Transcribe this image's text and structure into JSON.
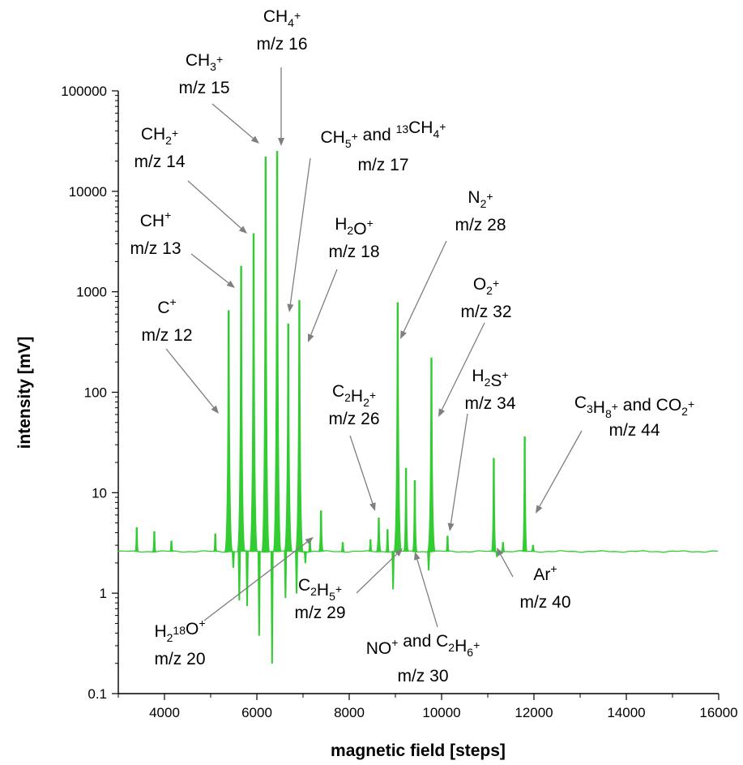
{
  "chart_data": {
    "type": "line",
    "title": "",
    "xlabel": "magnetic field [steps]",
    "ylabel": "intensity [mV]",
    "xlim": [
      3000,
      16000
    ],
    "ylim": [
      0.1,
      100000
    ],
    "y_scale": "log",
    "grid": false,
    "legend": "none",
    "series_color": "#33cc33",
    "baseline": 2.6,
    "x_ticks": [
      4000,
      6000,
      8000,
      10000,
      12000,
      14000,
      16000
    ],
    "x_tick_labels": [
      "4000",
      "6000",
      "8000",
      "10000",
      "12000",
      "14000",
      "16000"
    ],
    "y_ticks": [
      0.1,
      1,
      10,
      100,
      1000,
      10000,
      100000
    ],
    "y_tick_labels": [
      "0.1",
      "1",
      "10",
      "100",
      "1000",
      "10000",
      "100000"
    ],
    "peaks": [
      {
        "x": 3400,
        "y": 4.5
      },
      {
        "x": 3780,
        "y": 4.1
      },
      {
        "x": 4150,
        "y": 3.3
      },
      {
        "x": 5100,
        "y": 3.9
      },
      {
        "x": 5390,
        "y": 650
      },
      {
        "x": 5660,
        "y": 1800
      },
      {
        "x": 5930,
        "y": 3800
      },
      {
        "x": 6190,
        "y": 22000
      },
      {
        "x": 6440,
        "y": 25000
      },
      {
        "x": 6680,
        "y": 480
      },
      {
        "x": 6920,
        "y": 820
      },
      {
        "x": 7150,
        "y": 3.4
      },
      {
        "x": 7390,
        "y": 6.6
      },
      {
        "x": 7860,
        "y": 3.2
      },
      {
        "x": 8460,
        "y": 3.4
      },
      {
        "x": 8640,
        "y": 5.6
      },
      {
        "x": 8830,
        "y": 4.3
      },
      {
        "x": 9050,
        "y": 780
      },
      {
        "x": 9230,
        "y": 17.5
      },
      {
        "x": 9420,
        "y": 13.2
      },
      {
        "x": 9780,
        "y": 220
      },
      {
        "x": 10130,
        "y": 3.7
      },
      {
        "x": 11130,
        "y": 22
      },
      {
        "x": 11330,
        "y": 3.2
      },
      {
        "x": 11800,
        "y": 36
      },
      {
        "x": 11980,
        "y": 3.0
      }
    ],
    "dips": [
      {
        "x": 5490,
        "y": 1.8
      },
      {
        "x": 5620,
        "y": 0.85
      },
      {
        "x": 5790,
        "y": 0.75
      },
      {
        "x": 6050,
        "y": 0.38
      },
      {
        "x": 6330,
        "y": 0.2
      },
      {
        "x": 6620,
        "y": 0.9
      },
      {
        "x": 6860,
        "y": 1.0
      },
      {
        "x": 7050,
        "y": 2.0
      },
      {
        "x": 8950,
        "y": 1.1
      },
      {
        "x": 9720,
        "y": 1.7
      },
      {
        "x": 11200,
        "y": 2.3
      }
    ],
    "annotations": [
      {
        "id": "c",
        "lines": [
          [
            {
              "t": "C"
            },
            {
              "t": "+",
              "s": "sup"
            }
          ],
          [
            {
              "t": "m/z 12"
            }
          ]
        ]
      },
      {
        "id": "ch",
        "lines": [
          [
            {
              "t": "CH"
            },
            {
              "t": "+",
              "s": "sup"
            }
          ],
          [
            {
              "t": "m/z 13"
            }
          ]
        ]
      },
      {
        "id": "ch2",
        "lines": [
          [
            {
              "t": "CH"
            },
            {
              "t": "2",
              "s": "sub"
            },
            {
              "t": "+",
              "s": "sup"
            }
          ],
          [
            {
              "t": "m/z 14"
            }
          ]
        ]
      },
      {
        "id": "ch3",
        "lines": [
          [
            {
              "t": "CH"
            },
            {
              "t": "3",
              "s": "sub"
            },
            {
              "t": "+",
              "s": "sup"
            }
          ],
          [
            {
              "t": "m/z 15"
            }
          ]
        ]
      },
      {
        "id": "ch4",
        "lines": [
          [
            {
              "t": "CH"
            },
            {
              "t": "4",
              "s": "sub"
            },
            {
              "t": "+",
              "s": "sup"
            }
          ],
          [
            {
              "t": "m/z 16"
            }
          ]
        ]
      },
      {
        "id": "ch5",
        "lines": [
          [
            {
              "t": "CH"
            },
            {
              "t": "5",
              "s": "sub"
            },
            {
              "t": "+",
              "s": "sup"
            },
            {
              "t": " and "
            },
            {
              "t": "13",
              "s": "sup"
            },
            {
              "t": "CH"
            },
            {
              "t": "4",
              "s": "sub"
            },
            {
              "t": "+",
              "s": "sup"
            }
          ],
          [
            {
              "t": "m/z 17"
            }
          ]
        ]
      },
      {
        "id": "h2o",
        "lines": [
          [
            {
              "t": "H"
            },
            {
              "t": "2",
              "s": "sub"
            },
            {
              "t": "O"
            },
            {
              "t": "+",
              "s": "sup"
            }
          ],
          [
            {
              "t": "m/z 18"
            }
          ]
        ]
      },
      {
        "id": "h218o",
        "lines": [
          [
            {
              "t": "H"
            },
            {
              "t": "2",
              "s": "sub"
            },
            {
              "t": "18",
              "s": "sup"
            },
            {
              "t": "O"
            },
            {
              "t": "+",
              "s": "sup"
            }
          ],
          [
            {
              "t": "m/z 20"
            }
          ]
        ]
      },
      {
        "id": "c2h2",
        "lines": [
          [
            {
              "t": "C"
            },
            {
              "t": "2",
              "s": "sub"
            },
            {
              "t": "H"
            },
            {
              "t": "2",
              "s": "sub"
            },
            {
              "t": "+",
              "s": "sup"
            }
          ],
          [
            {
              "t": "m/z 26"
            }
          ]
        ]
      },
      {
        "id": "n2",
        "lines": [
          [
            {
              "t": "N"
            },
            {
              "t": "2",
              "s": "sub"
            },
            {
              "t": "+",
              "s": "sup"
            }
          ],
          [
            {
              "t": "m/z 28"
            }
          ]
        ]
      },
      {
        "id": "c2h5",
        "lines": [
          [
            {
              "t": "C"
            },
            {
              "t": "2",
              "s": "sub"
            },
            {
              "t": "H"
            },
            {
              "t": "5",
              "s": "sub"
            },
            {
              "t": "+",
              "s": "sup"
            }
          ],
          [
            {
              "t": "m/z 29"
            }
          ]
        ]
      },
      {
        "id": "no",
        "lines": [
          [
            {
              "t": "NO"
            },
            {
              "t": "+",
              "s": "sup"
            },
            {
              "t": " and  C"
            },
            {
              "t": "2",
              "s": "sub"
            },
            {
              "t": "H"
            },
            {
              "t": "6",
              "s": "sub"
            },
            {
              "t": "+",
              "s": "sup"
            }
          ],
          [
            {
              "t": "m/z 30"
            }
          ]
        ]
      },
      {
        "id": "o2",
        "lines": [
          [
            {
              "t": "O"
            },
            {
              "t": "2",
              "s": "sub"
            },
            {
              "t": "+",
              "s": "sup"
            }
          ],
          [
            {
              "t": "m/z 32"
            }
          ]
        ]
      },
      {
        "id": "h2s",
        "lines": [
          [
            {
              "t": "H"
            },
            {
              "t": "2",
              "s": "sub"
            },
            {
              "t": "S"
            },
            {
              "t": "+",
              "s": "sup"
            }
          ],
          [
            {
              "t": "m/z 34"
            }
          ]
        ]
      },
      {
        "id": "ar",
        "lines": [
          [
            {
              "t": "Ar"
            },
            {
              "t": "+",
              "s": "sup"
            }
          ],
          [
            {
              "t": "m/z 40"
            }
          ]
        ]
      },
      {
        "id": "c3h8",
        "lines": [
          [
            {
              "t": "C"
            },
            {
              "t": "3",
              "s": "sub"
            },
            {
              "t": "H"
            },
            {
              "t": "8",
              "s": "sub"
            },
            {
              "t": "+",
              "s": "sup"
            },
            {
              "t": " and CO"
            },
            {
              "t": "2",
              "s": "sub"
            },
            {
              "t": "+",
              "s": "sup"
            }
          ],
          [
            {
              "t": "m/z 44"
            }
          ]
        ]
      }
    ]
  }
}
